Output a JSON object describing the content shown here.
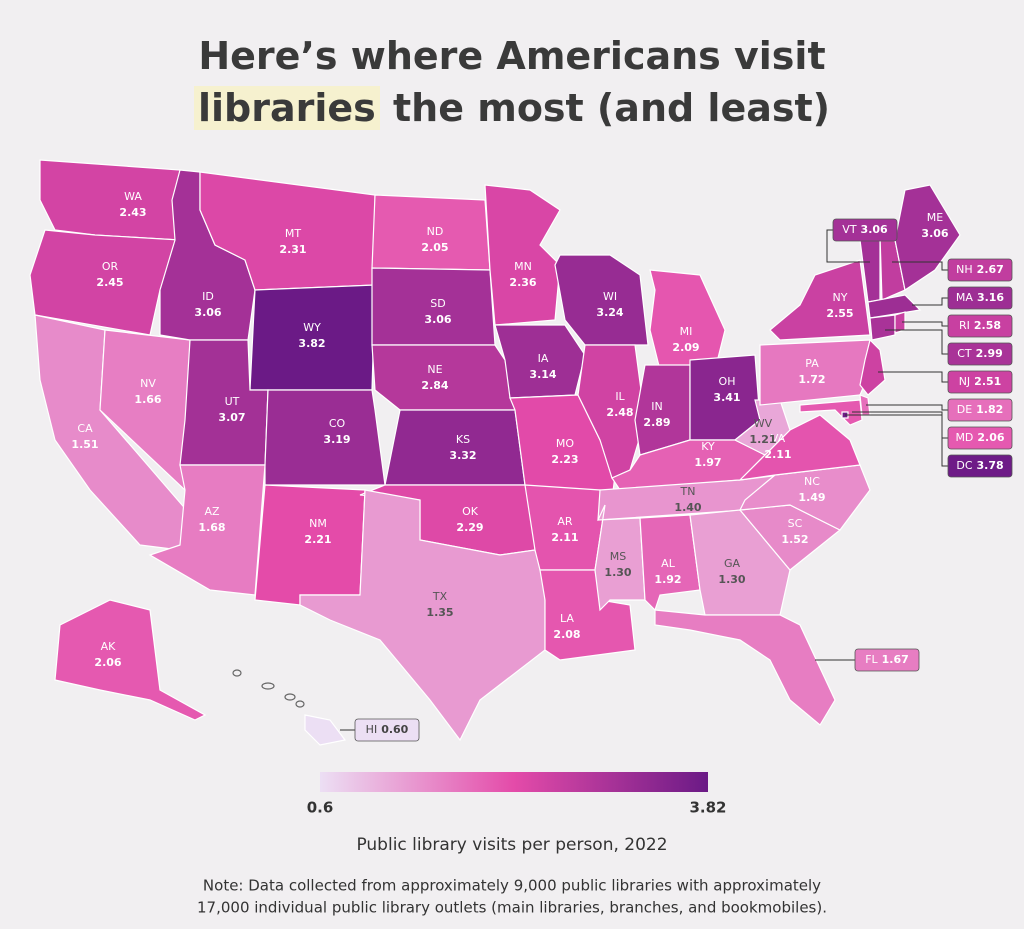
{
  "title_line1": "Here’s where Americans visit",
  "title_highlight": "libraries",
  "title_rest": "the most (and least)",
  "chart_data": {
    "type": "choropleth",
    "states": [
      {
        "abbr": "WA",
        "value": 2.43
      },
      {
        "abbr": "OR",
        "value": 2.45
      },
      {
        "abbr": "CA",
        "value": 1.51
      },
      {
        "abbr": "NV",
        "value": 1.66
      },
      {
        "abbr": "ID",
        "value": 3.06
      },
      {
        "abbr": "MT",
        "value": 2.31
      },
      {
        "abbr": "WY",
        "value": 3.82
      },
      {
        "abbr": "UT",
        "value": 3.07
      },
      {
        "abbr": "CO",
        "value": 3.19
      },
      {
        "abbr": "AZ",
        "value": 1.68
      },
      {
        "abbr": "NM",
        "value": 2.21
      },
      {
        "abbr": "ND",
        "value": 2.05
      },
      {
        "abbr": "SD",
        "value": 3.06
      },
      {
        "abbr": "NE",
        "value": 2.84
      },
      {
        "abbr": "KS",
        "value": 3.32
      },
      {
        "abbr": "OK",
        "value": 2.29
      },
      {
        "abbr": "TX",
        "value": 1.35
      },
      {
        "abbr": "MN",
        "value": 2.36
      },
      {
        "abbr": "IA",
        "value": 3.14
      },
      {
        "abbr": "MO",
        "value": 2.23
      },
      {
        "abbr": "AR",
        "value": 2.11
      },
      {
        "abbr": "LA",
        "value": 2.08
      },
      {
        "abbr": "WI",
        "value": 3.24
      },
      {
        "abbr": "IL",
        "value": 2.48
      },
      {
        "abbr": "MI",
        "value": 2.09
      },
      {
        "abbr": "IN",
        "value": 2.89
      },
      {
        "abbr": "OH",
        "value": 3.41
      },
      {
        "abbr": "KY",
        "value": 1.97
      },
      {
        "abbr": "TN",
        "value": 1.4,
        "value_label": "1.40"
      },
      {
        "abbr": "MS",
        "value": 1.3,
        "value_label": "1.30"
      },
      {
        "abbr": "AL",
        "value": 1.92
      },
      {
        "abbr": "GA",
        "value": 1.3,
        "value_label": "1.30"
      },
      {
        "abbr": "FL",
        "value": 1.67
      },
      {
        "abbr": "SC",
        "value": 1.52
      },
      {
        "abbr": "NC",
        "value": 1.49
      },
      {
        "abbr": "VA",
        "value": 2.11
      },
      {
        "abbr": "WV",
        "value": 1.21
      },
      {
        "abbr": "PA",
        "value": 1.72
      },
      {
        "abbr": "NY",
        "value": 2.55
      },
      {
        "abbr": "VT",
        "value": 3.06
      },
      {
        "abbr": "NH",
        "value": 2.67
      },
      {
        "abbr": "ME",
        "value": 3.06
      },
      {
        "abbr": "MA",
        "value": 3.16
      },
      {
        "abbr": "CT",
        "value": 2.99
      },
      {
        "abbr": "RI",
        "value": 2.58
      },
      {
        "abbr": "NJ",
        "value": 2.51
      },
      {
        "abbr": "DE",
        "value": 1.82
      },
      {
        "abbr": "MD",
        "value": 2.06
      },
      {
        "abbr": "DC",
        "value": 3.78
      },
      {
        "abbr": "AK",
        "value": 2.06
      },
      {
        "abbr": "HI",
        "value": 0.6,
        "value_label": "0.60"
      }
    ],
    "legend": {
      "min": 0.6,
      "max": 3.82,
      "colors": [
        "#ecdff4",
        "#e44ba9",
        "#6b1a86"
      ],
      "title": "Public library visits per person, 2022"
    }
  },
  "note": [
    "Note: Data collected from approximately 9,000 public libraries with approximately",
    "17,000 individual public library outlets (main libraries, branches, and bookmobiles)."
  ]
}
